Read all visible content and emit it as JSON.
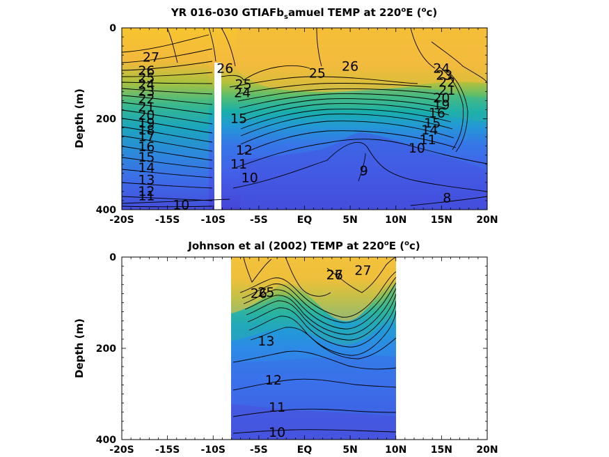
{
  "chart_data": [
    {
      "type": "contour",
      "title": "YR 016-030 GTIAFb_samuel TEMP at 220ºE (ºc)",
      "title_parts": {
        "pre": "YR 016-030 GTIAFb",
        "sub": "s",
        "mid": "amuel TEMP at 220",
        "sup1": "o",
        "mid2": "E (",
        "sup2": "o",
        "post": "c)"
      },
      "ylabel": "Depth (m)",
      "xlim": [
        -20,
        20
      ],
      "ylim": [
        400,
        0
      ],
      "x_ticks": [
        {
          "value": -20,
          "label": "-20S"
        },
        {
          "value": -15,
          "label": "-15S"
        },
        {
          "value": -10,
          "label": "-10S"
        },
        {
          "value": -5,
          "label": "-5S"
        },
        {
          "value": 0,
          "label": "EQ"
        },
        {
          "value": 5,
          "label": "5N"
        },
        {
          "value": 10,
          "label": "10N"
        },
        {
          "value": 15,
          "label": "15N"
        },
        {
          "value": 20,
          "label": "20N"
        }
      ],
      "y_ticks": [
        0,
        200,
        400
      ],
      "data_extent_x": [
        -20,
        20
      ],
      "missing_band_x": [
        -10,
        -9.6
      ],
      "contour_labels": [
        {
          "lon": -16.8,
          "depth": 65,
          "label": "27"
        },
        {
          "lon": -17.3,
          "depth": 95,
          "label": "26"
        },
        {
          "lon": -17.3,
          "depth": 110,
          "label": "25"
        },
        {
          "lon": -17.3,
          "depth": 125,
          "label": "24"
        },
        {
          "lon": -17.3,
          "depth": 140,
          "label": "23"
        },
        {
          "lon": -17.3,
          "depth": 157,
          "label": "22"
        },
        {
          "lon": -17.3,
          "depth": 175,
          "label": "21"
        },
        {
          "lon": -17.3,
          "depth": 193,
          "label": "20"
        },
        {
          "lon": -17.3,
          "depth": 210,
          "label": "19"
        },
        {
          "lon": -17.3,
          "depth": 225,
          "label": "18"
        },
        {
          "lon": -17.3,
          "depth": 240,
          "label": "17"
        },
        {
          "lon": -17.3,
          "depth": 262,
          "label": "16"
        },
        {
          "lon": -17.3,
          "depth": 285,
          "label": "15"
        },
        {
          "lon": -17.3,
          "depth": 308,
          "label": "14"
        },
        {
          "lon": -17.3,
          "depth": 335,
          "label": "13"
        },
        {
          "lon": -17.3,
          "depth": 360,
          "label": "12"
        },
        {
          "lon": -17.3,
          "depth": 370,
          "label": "11"
        },
        {
          "lon": -13.5,
          "depth": 390,
          "label": "10"
        },
        {
          "lon": -8.7,
          "depth": 90,
          "label": "26"
        },
        {
          "lon": -6.7,
          "depth": 125,
          "label": "25"
        },
        {
          "lon": -6.8,
          "depth": 143,
          "label": "24"
        },
        {
          "lon": -7.2,
          "depth": 200,
          "label": "15"
        },
        {
          "lon": -6.6,
          "depth": 270,
          "label": "12"
        },
        {
          "lon": -7.2,
          "depth": 300,
          "label": "11"
        },
        {
          "lon": -6.0,
          "depth": 330,
          "label": "10"
        },
        {
          "lon": 1.4,
          "depth": 100,
          "label": "25"
        },
        {
          "lon": 5.0,
          "depth": 85,
          "label": "26"
        },
        {
          "lon": 6.5,
          "depth": 315,
          "label": "9"
        },
        {
          "lon": 15.0,
          "depth": 90,
          "label": "24"
        },
        {
          "lon": 15.3,
          "depth": 105,
          "label": "23"
        },
        {
          "lon": 15.6,
          "depth": 120,
          "label": "22"
        },
        {
          "lon": 15.6,
          "depth": 138,
          "label": "21"
        },
        {
          "lon": 15.0,
          "depth": 155,
          "label": "20"
        },
        {
          "lon": 15.0,
          "depth": 170,
          "label": "19"
        },
        {
          "lon": 14.5,
          "depth": 188,
          "label": "16"
        },
        {
          "lon": 14.0,
          "depth": 210,
          "label": "15"
        },
        {
          "lon": 13.7,
          "depth": 225,
          "label": "14"
        },
        {
          "lon": 13.5,
          "depth": 247,
          "label": "11"
        },
        {
          "lon": 12.3,
          "depth": 265,
          "label": "10"
        },
        {
          "lon": 15.6,
          "depth": 375,
          "label": "8"
        }
      ]
    },
    {
      "type": "contour",
      "title": "Johnson et al (2002) TEMP at 220ºE (ºc)",
      "title_parts": {
        "pre": "Johnson et al (2002) TEMP at 220",
        "sup1": "o",
        "mid2": "E (",
        "sup2": "o",
        "post": "c)"
      },
      "ylabel": "Depth (m)",
      "xlim": [
        -20,
        20
      ],
      "ylim": [
        400,
        0
      ],
      "x_ticks": [
        {
          "value": -20,
          "label": "-20S"
        },
        {
          "value": -15,
          "label": "-15S"
        },
        {
          "value": -10,
          "label": "-10S"
        },
        {
          "value": -5,
          "label": "-5S"
        },
        {
          "value": 0,
          "label": "EQ"
        },
        {
          "value": 5,
          "label": "5N"
        },
        {
          "value": 10,
          "label": "10N"
        },
        {
          "value": 15,
          "label": "15N"
        },
        {
          "value": 20,
          "label": "20N"
        }
      ],
      "y_ticks": [
        0,
        200,
        400
      ],
      "data_extent_x": [
        -8,
        10
      ],
      "contour_labels": [
        {
          "lon": 3.3,
          "depth": 40,
          "label": "27"
        },
        {
          "lon": 6.4,
          "depth": 30,
          "label": "27"
        },
        {
          "lon": 3.3,
          "depth": 40,
          "label": "26"
        },
        {
          "lon": -5.0,
          "depth": 80,
          "label": "26"
        },
        {
          "lon": -4.2,
          "depth": 78,
          "label": "25"
        },
        {
          "lon": -4.2,
          "depth": 185,
          "label": "13"
        },
        {
          "lon": -3.4,
          "depth": 270,
          "label": "12"
        },
        {
          "lon": -3.0,
          "depth": 330,
          "label": "11"
        },
        {
          "lon": -3.0,
          "depth": 385,
          "label": "10"
        }
      ]
    }
  ]
}
